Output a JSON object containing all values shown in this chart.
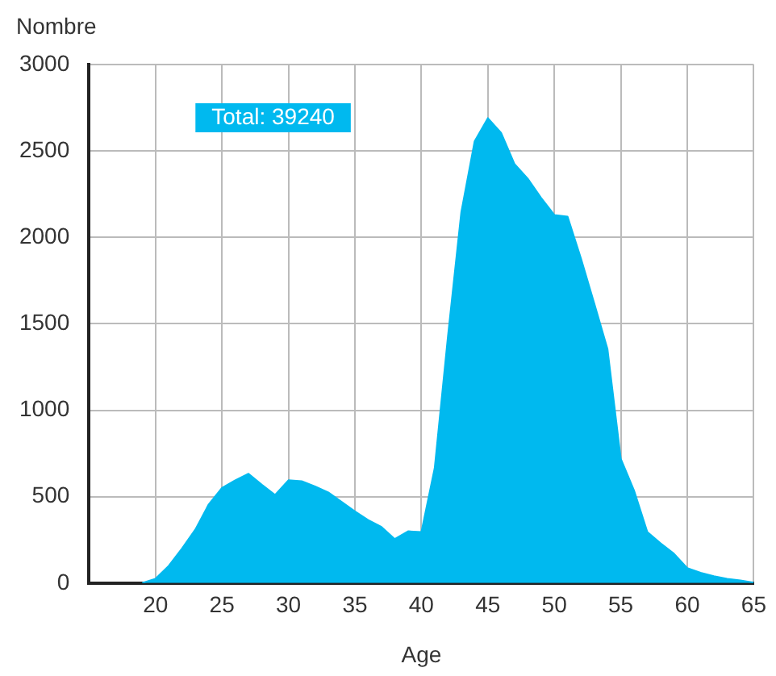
{
  "chart_data": {
    "type": "area",
    "xlabel": "Age",
    "ylabel": "Nombre",
    "annotations": [
      "Total: 39240"
    ],
    "x": [
      19,
      20,
      21,
      22,
      23,
      24,
      25,
      26,
      27,
      28,
      29,
      30,
      31,
      32,
      33,
      34,
      35,
      36,
      37,
      38,
      39,
      40,
      41,
      42,
      43,
      44,
      45,
      46,
      47,
      48,
      49,
      50,
      51,
      52,
      53,
      54,
      55,
      56,
      57,
      58,
      59,
      60,
      61,
      62,
      63,
      64,
      65
    ],
    "series": [
      {
        "color": "#00b9ef",
        "values": [
          0,
          25,
          100,
          200,
          310,
          455,
          550,
          595,
          633,
          570,
          510,
          595,
          590,
          560,
          525,
          470,
          415,
          365,
          325,
          255,
          300,
          295,
          665,
          1430,
          2145,
          2555,
          2690,
          2605,
          2425,
          2340,
          2230,
          2130,
          2120,
          1880,
          1620,
          1355,
          720,
          535,
          295,
          230,
          170,
          87,
          60,
          40,
          25,
          15,
          3
        ]
      }
    ],
    "xlim": [
      15,
      65
    ],
    "xticks": [
      20,
      25,
      30,
      35,
      40,
      45,
      50,
      55,
      60,
      65
    ],
    "ylim": [
      0,
      3000
    ],
    "yticks": [
      0,
      500,
      1000,
      1500,
      2000,
      2500,
      3000
    ],
    "grid": true,
    "legend": false
  }
}
